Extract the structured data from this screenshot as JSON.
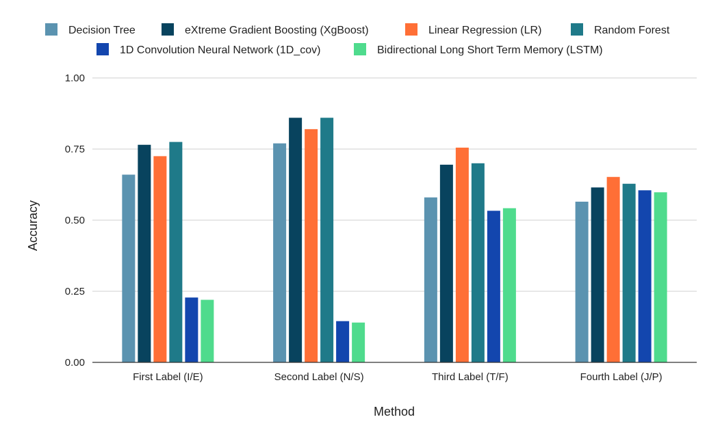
{
  "chart_data": {
    "type": "bar",
    "title": "",
    "xlabel": "Method",
    "ylabel": "Accuracy",
    "ylim": [
      0,
      1
    ],
    "yticks": [
      "0.00",
      "0.25",
      "0.50",
      "0.75",
      "1.00"
    ],
    "grid": true,
    "legend_position": "top",
    "categories": [
      "First Label (I/E)",
      "Second Label (N/S)",
      "Third Label (T/F)",
      "Fourth Label (J/P)"
    ],
    "series": [
      {
        "name": "Decision Tree",
        "color": "#5b93b0",
        "values": [
          0.66,
          0.77,
          0.58,
          0.565
        ]
      },
      {
        "name": "eXtreme Gradient Boosting (XgBoost)",
        "color": "#08435e",
        "values": [
          0.765,
          0.86,
          0.695,
          0.615
        ]
      },
      {
        "name": "Linear Regression (LR)",
        "color": "#ff6f36",
        "values": [
          0.725,
          0.82,
          0.755,
          0.652
        ]
      },
      {
        "name": "Random Forest",
        "color": "#1f7a89",
        "values": [
          0.775,
          0.86,
          0.7,
          0.628
        ]
      },
      {
        "name": "1D Convolution Neural Network (1D_cov)",
        "color": "#1346ae",
        "values": [
          0.228,
          0.145,
          0.533,
          0.605
        ]
      },
      {
        "name": "Bidirectional Long Short Term Memory (LSTM)",
        "color": "#4fdb8d",
        "values": [
          0.22,
          0.14,
          0.542,
          0.598
        ]
      }
    ]
  }
}
